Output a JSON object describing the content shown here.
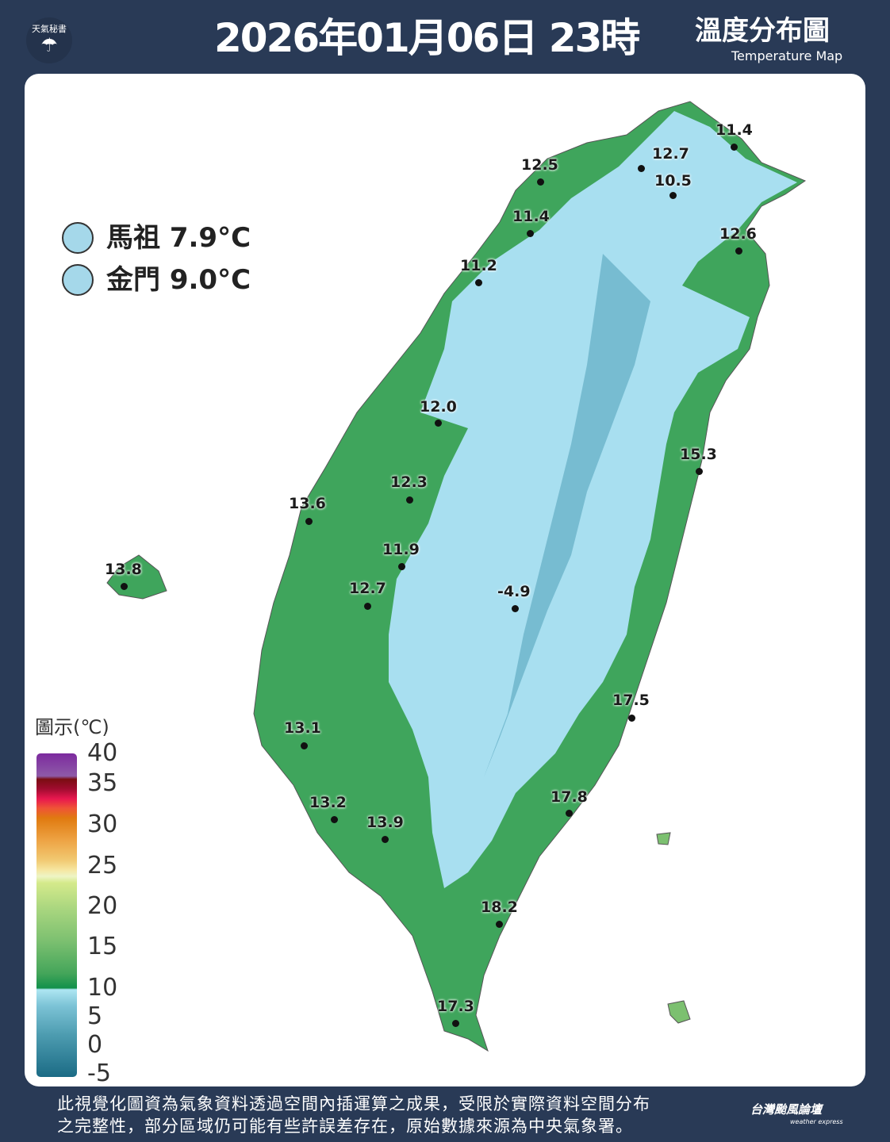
{
  "header": {
    "logo_text": "天氣秘書",
    "title": "2026年01月06日 23時",
    "map_title": "溫度分布圖",
    "map_title_en": "Temperature Map"
  },
  "islands": [
    {
      "label": "馬祖 7.9°C",
      "color": "#a5d8ea"
    },
    {
      "label": "金門 9.0°C",
      "color": "#a5d8ea"
    }
  ],
  "stations": [
    "11.4",
    "12.7",
    "10.5",
    "12.5",
    "11.4",
    "12.6",
    "11.2",
    "12.0",
    "15.3",
    "12.3",
    "13.6",
    "13.8",
    "11.9",
    "12.7",
    "-4.9",
    "17.5",
    "13.1",
    "17.8",
    "13.2",
    "13.9",
    "18.2",
    "17.3"
  ],
  "legend": {
    "title": "圖示(℃)",
    "labels": [
      "40",
      "35",
      "30",
      "25",
      "20",
      "15",
      "10",
      "5",
      "0",
      "-5"
    ]
  },
  "footer": {
    "line1": "此視覺化圖資為氣象資料透過空間內插運算之成果，受限於實際資料空間分布",
    "line2": "之完整性，部分區域仍可能有些許誤差存在，原始數據來源為中央氣象署。",
    "brand": "台灣颱風論壇",
    "brand_en": "weather express"
  },
  "colors": {
    "background": "#293a56",
    "lowland": "#3fa55c",
    "mountain": "#a8dff0",
    "peak": "#2c7f9b"
  }
}
